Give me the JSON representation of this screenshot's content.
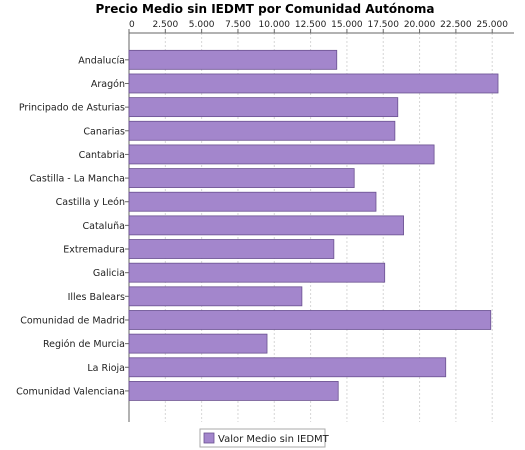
{
  "chart_data": {
    "type": "bar",
    "orientation": "horizontal",
    "title": "Precio Medio sin IEDMT por Comunidad Autónoma",
    "xlabel": "",
    "ylabel": "",
    "xlim": [
      0,
      26500
    ],
    "x_ticks": [
      0,
      2500,
      5000,
      7500,
      10000,
      12500,
      15000,
      17500,
      20000,
      22500,
      25000
    ],
    "x_tick_labels": [
      "0",
      "2.500",
      "5.000",
      "7.500",
      "10.000",
      "12.500",
      "15.000",
      "17.500",
      "20.000",
      "22.500",
      "25.000"
    ],
    "x_axis_position": "top",
    "grid": true,
    "legend_position": "bottom",
    "categories": [
      "Andalucía",
      "Aragón",
      "Principado de Asturias",
      "Canarias",
      "Cantabria",
      "Castilla - La Mancha",
      "Castilla y León",
      "Cataluña",
      "Extremadura",
      "Galicia",
      "Illes Balears",
      "Comunidad de Madrid",
      "Región de Murcia",
      "La Rioja",
      "Comunidad Valenciana"
    ],
    "series": [
      {
        "name": "Valor Medio sin IEDMT",
        "color": "#a386cc",
        "values": [
          14300,
          25400,
          18500,
          18300,
          21000,
          15500,
          17000,
          18900,
          14100,
          17600,
          11900,
          24900,
          9500,
          21800,
          14400
        ]
      }
    ]
  }
}
